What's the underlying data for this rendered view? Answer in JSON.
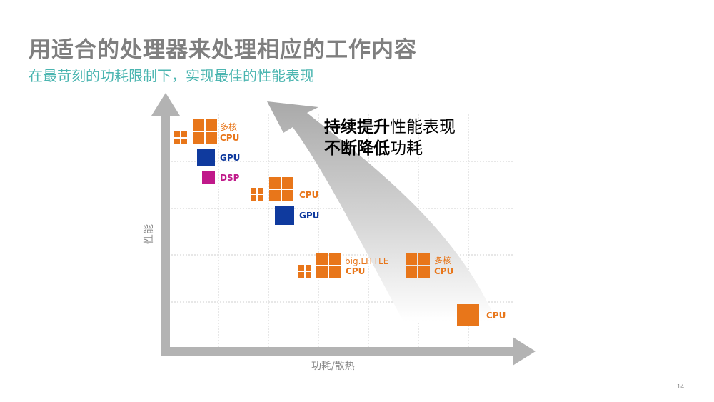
{
  "slide": {
    "title": "用适合的处理器来处理相应的工作内容",
    "subtitle": "在最苛刻的功耗限制下，实现最佳的性能表现",
    "page_number": "14"
  },
  "headline": {
    "line1_bold": "持续提升",
    "line1_rest": "性能表现",
    "line2_bold": "不断降低",
    "line2_rest": "功耗"
  },
  "axes": {
    "y_label": "性能",
    "x_label": "功耗/散热"
  },
  "labels": {
    "multicore": "多核",
    "cpu": "CPU",
    "gpu": "GPU",
    "dsp": "DSP",
    "big_little": "big.LITTLE"
  },
  "colors": {
    "cpu": "#e8761a",
    "gpu": "#0f3a9e",
    "dsp": "#c0198a",
    "axis": "#b3b3b3",
    "title": "#7f7f7f",
    "subtitle": "#4ab5b0"
  }
}
